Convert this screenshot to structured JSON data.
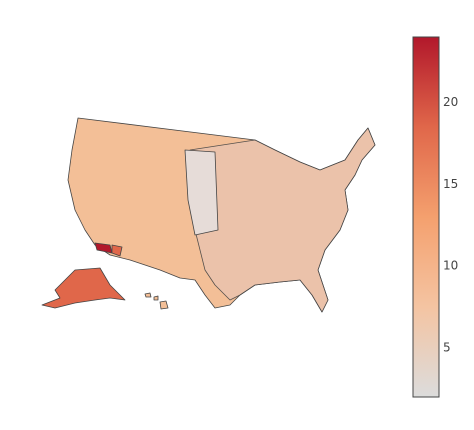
{
  "chart_data": {
    "type": "choropleth",
    "colorscale": [
      "#dcdcdc",
      "#f4c4a2",
      "#f4a06e",
      "#e0674a",
      "#b2182b"
    ],
    "zlim": [
      2,
      24
    ],
    "zticks": [
      5,
      10,
      15,
      20
    ]
  }
}
